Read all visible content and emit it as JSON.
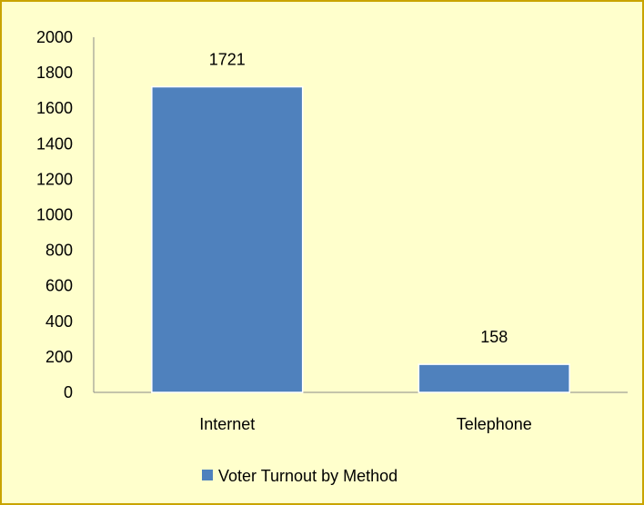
{
  "chart_data": {
    "type": "bar",
    "categories": [
      "Internet",
      "Telephone"
    ],
    "series": [
      {
        "name": "Voter Turnout by Method",
        "values": [
          1721,
          158
        ]
      }
    ],
    "data_labels": [
      "1721",
      "158"
    ],
    "ylim": [
      0,
      2000
    ],
    "yticks": [
      0,
      200,
      400,
      600,
      800,
      1000,
      1200,
      1400,
      1600,
      1800,
      2000
    ],
    "legend_position": "bottom",
    "grid": false,
    "colors": {
      "bar": "#4f81bd",
      "background": "#ffffcc",
      "border": "#c9a400"
    }
  }
}
